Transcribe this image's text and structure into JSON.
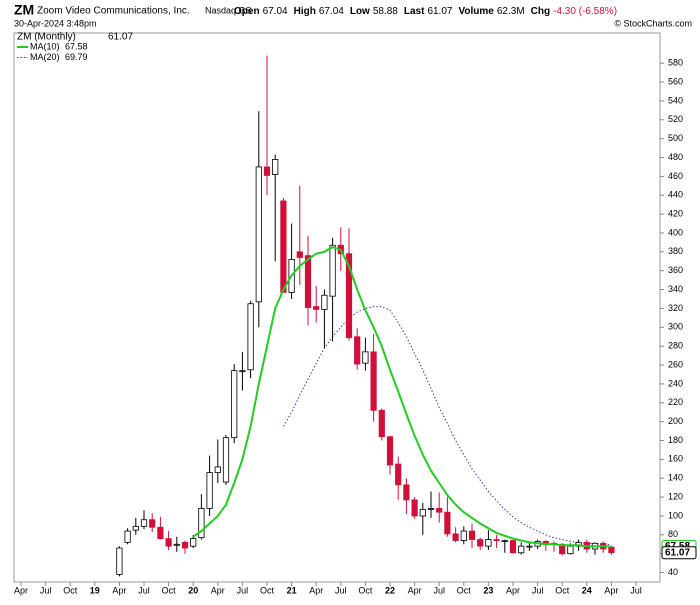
{
  "chart_data": {
    "type": "candlestick",
    "symbol": "ZM",
    "title": "Zoom Video Communications, Inc.",
    "exchange": "Nasdaq GS",
    "date": "30-Apr-2024 3:48pm",
    "source": "© StockCharts.com",
    "stats": [
      {
        "label": "Open",
        "value": 67.04
      },
      {
        "label": "High",
        "value": 67.04
      },
      {
        "label": "Low",
        "value": 58.88
      },
      {
        "label": "Last",
        "value": 61.07
      },
      {
        "label": "Volume",
        "value": "62.3M"
      },
      {
        "label": "Chg",
        "value": "-4.30 (-6.58%)"
      }
    ],
    "categories": [
      "Apr",
      null,
      null,
      "Jul",
      null,
      null,
      "Oct",
      null,
      null,
      "19",
      null,
      null,
      "Apr",
      null,
      null,
      "Jul",
      null,
      null,
      "Oct",
      null,
      null,
      "20",
      null,
      null,
      "Apr",
      null,
      null,
      "Jul",
      null,
      null,
      "Oct",
      null,
      null,
      "21",
      null,
      null,
      "Apr",
      null,
      null,
      "Jul",
      null,
      null,
      "Oct",
      null,
      null,
      "22",
      null,
      null,
      "Apr",
      null,
      null,
      "Jul",
      null,
      null,
      "Oct",
      null,
      null,
      "23",
      null,
      null,
      "Apr",
      null,
      null,
      "Jul",
      null,
      null,
      "Oct",
      null,
      null,
      "24",
      null,
      null,
      "Apr",
      null,
      null,
      "Jul"
    ],
    "price": {
      "name": "ZM (Monthly)",
      "last": 61.07,
      "up_color": "#ffffff",
      "down_color": "#d0103a"
    },
    "open": [
      null,
      null,
      null,
      null,
      null,
      null,
      null,
      null,
      null,
      null,
      null,
      null,
      38,
      72,
      85,
      89,
      96,
      88,
      76,
      70,
      72,
      68,
      77,
      108,
      146,
      136,
      183,
      254,
      255,
      327,
      470,
      462,
      434,
      337,
      380,
      376,
      322,
      319,
      333,
      387,
      378,
      290,
      262,
      274,
      212,
      184,
      155,
      133,
      117,
      100,
      107,
      108,
      104,
      81,
      74,
      84,
      75,
      68,
      75,
      74,
      74,
      61,
      68,
      68,
      73,
      71,
      70,
      60,
      68,
      72,
      65,
      71,
      67.04,
      null,
      null,
      null
    ],
    "high": [
      null,
      null,
      null,
      null,
      null,
      null,
      null,
      null,
      null,
      null,
      null,
      null,
      68,
      87,
      98,
      106,
      103,
      99,
      84,
      78,
      74,
      80,
      123,
      164,
      181,
      186,
      261,
      274,
      328,
      529,
      588,
      483,
      437,
      410,
      450,
      397,
      344,
      340,
      395,
      406,
      405,
      299,
      289,
      293,
      214,
      185,
      163,
      140,
      120,
      114,
      126,
      125,
      120,
      88,
      89,
      92,
      77,
      85,
      80,
      75,
      74,
      72,
      73,
      75,
      74,
      73,
      71,
      71,
      75,
      75,
      72,
      73,
      67.04,
      null,
      null,
      null
    ],
    "low": [
      null,
      null,
      null,
      null,
      null,
      null,
      null,
      null,
      null,
      null,
      null,
      null,
      36,
      70,
      80,
      86,
      83,
      75,
      64,
      62,
      60,
      66,
      75,
      100,
      135,
      133,
      177,
      233,
      246,
      300,
      440,
      370,
      338,
      330,
      345,
      302,
      305,
      278,
      285,
      360,
      286,
      255,
      254,
      200,
      180,
      144,
      117,
      102,
      97,
      80,
      98,
      93,
      78,
      72,
      70,
      66,
      64,
      64,
      66,
      61,
      60,
      59,
      63,
      65,
      63,
      62,
      58,
      59,
      63,
      61,
      59,
      61,
      58.88,
      null,
      null,
      null
    ],
    "close": [
      null,
      null,
      null,
      null,
      null,
      null,
      null,
      null,
      null,
      null,
      null,
      null,
      66,
      84,
      89,
      96,
      88,
      76,
      68,
      70,
      66,
      76,
      108,
      146,
      152,
      183,
      254,
      254,
      325,
      470,
      461,
      478,
      337,
      372,
      374,
      321,
      319,
      334,
      387,
      378,
      289,
      261,
      274,
      212,
      184,
      154,
      133,
      117,
      100,
      107,
      108,
      104,
      81,
      74,
      84,
      75,
      68,
      75,
      74,
      74,
      61,
      68,
      68,
      73,
      71,
      70,
      60,
      68,
      72,
      65,
      71,
      65,
      61.07,
      null,
      null,
      null
    ],
    "series": [
      {
        "name": "MA(10)",
        "last": 67.58,
        "color": "#22cc22",
        "dash": false,
        "values": [
          null,
          null,
          null,
          null,
          null,
          null,
          null,
          null,
          null,
          null,
          null,
          null,
          null,
          null,
          null,
          null,
          null,
          null,
          null,
          null,
          null,
          78,
          84,
          92,
          100,
          112,
          135,
          160,
          195,
          240,
          280,
          320,
          340,
          355,
          365,
          372,
          378,
          380,
          385,
          382,
          365,
          340,
          318,
          300,
          280,
          255,
          232,
          208,
          185,
          165,
          148,
          135,
          122,
          112,
          104,
          98,
          92,
          87,
          82,
          79,
          76,
          74,
          72,
          71,
          70,
          70,
          69,
          69,
          69,
          68,
          68,
          68,
          67.58,
          null,
          null,
          null
        ]
      },
      {
        "name": "MA(20)",
        "last": 69.79,
        "color": "#3a3aa0",
        "dash": true,
        "values": [
          null,
          null,
          null,
          null,
          null,
          null,
          null,
          null,
          null,
          null,
          null,
          null,
          null,
          null,
          null,
          null,
          null,
          null,
          null,
          null,
          null,
          null,
          null,
          null,
          null,
          null,
          null,
          null,
          null,
          null,
          null,
          null,
          195,
          210,
          228,
          245,
          262,
          278,
          290,
          300,
          310,
          316,
          320,
          322,
          322,
          318,
          305,
          290,
          272,
          255,
          235,
          215,
          198,
          180,
          165,
          150,
          138,
          126,
          116,
          107,
          99,
          93,
          88,
          84,
          80,
          77,
          75,
          73,
          72,
          71,
          70.5,
          70,
          69.79,
          null,
          null,
          null
        ]
      }
    ],
    "ylim": [
      30,
      612
    ],
    "yticks": [
      40,
      60,
      80,
      100,
      120,
      140,
      160,
      180,
      200,
      220,
      240,
      260,
      280,
      300,
      320,
      340,
      360,
      380,
      400,
      420,
      440,
      460,
      480,
      500,
      520,
      540,
      560,
      580
    ],
    "grid": false
  }
}
